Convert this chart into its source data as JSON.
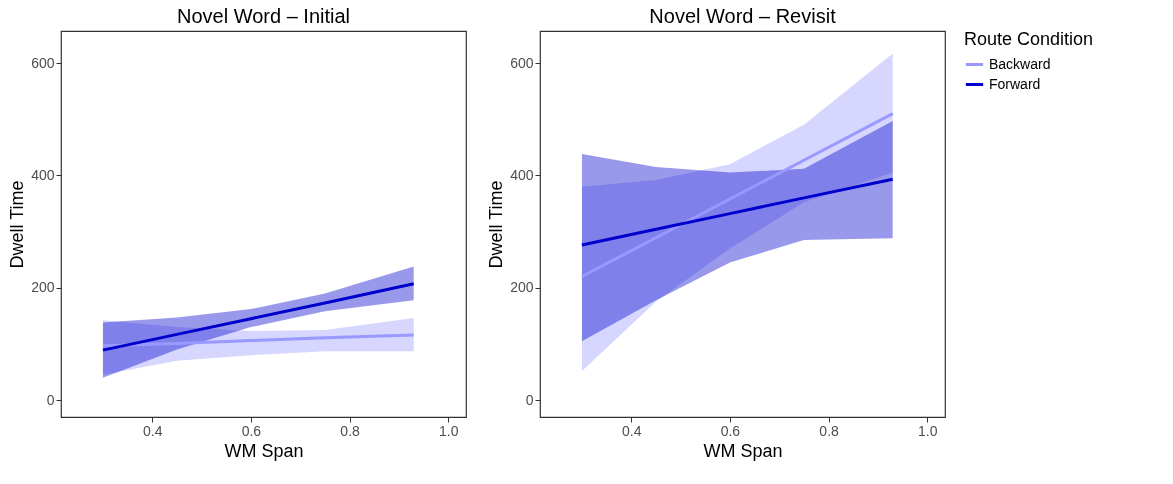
{
  "chart_data": [
    {
      "type": "line",
      "title": "Novel Word – Initial",
      "xlabel": "WM Span",
      "ylabel": "Dwell Time",
      "x": [
        0.3,
        0.45,
        0.6,
        0.75,
        0.93
      ],
      "series": [
        {
          "name": "Backward",
          "color": "#9999ff",
          "values": [
            97,
            101,
            106,
            111,
            116
          ],
          "lower": [
            45,
            70,
            80,
            87,
            87
          ],
          "upper": [
            142,
            130,
            123,
            125,
            146
          ]
        },
        {
          "name": "Forward",
          "color": "#0000cc",
          "values": [
            89,
            117,
            145,
            173,
            207
          ],
          "lower": [
            40,
            90,
            130,
            158,
            178
          ],
          "upper": [
            138,
            147,
            162,
            190,
            238
          ]
        }
      ],
      "xlim": [
        0.215,
        1.036
      ],
      "ylim": [
        -30,
        657
      ],
      "xticks": [
        0.4,
        0.6,
        0.8,
        {
          "value": 1,
          "label": "1.0"
        }
      ],
      "yticks": [
        0,
        200,
        400,
        600
      ],
      "grid": false,
      "legend": "right"
    },
    {
      "type": "line",
      "title": "Novel Word – Revisit",
      "xlabel": "WM Span",
      "ylabel": "Dwell Time",
      "legend_title": "Route Condition",
      "x": [
        0.3,
        0.45,
        0.6,
        0.75,
        0.93
      ],
      "series": [
        {
          "name": "Backward",
          "color": "#9999ff",
          "values": [
            220,
            289,
            358,
            427,
            510
          ],
          "lower": [
            52,
            175,
            270,
            352,
            405
          ],
          "upper": [
            380,
            392,
            420,
            490,
            617
          ]
        },
        {
          "name": "Forward",
          "color": "#0000cc",
          "values": [
            276,
            304,
            332,
            360,
            393
          ],
          "lower": [
            105,
            178,
            245,
            285,
            288
          ],
          "upper": [
            438,
            415,
            405,
            412,
            497
          ]
        }
      ],
      "xlim": [
        0.215,
        1.036
      ],
      "ylim": [
        -30,
        657
      ],
      "xticks": [
        0.4,
        0.6,
        0.8,
        {
          "value": 1,
          "label": "1.0"
        }
      ],
      "yticks": [
        0,
        200,
        400,
        600
      ],
      "grid": false,
      "legend": "right"
    }
  ]
}
